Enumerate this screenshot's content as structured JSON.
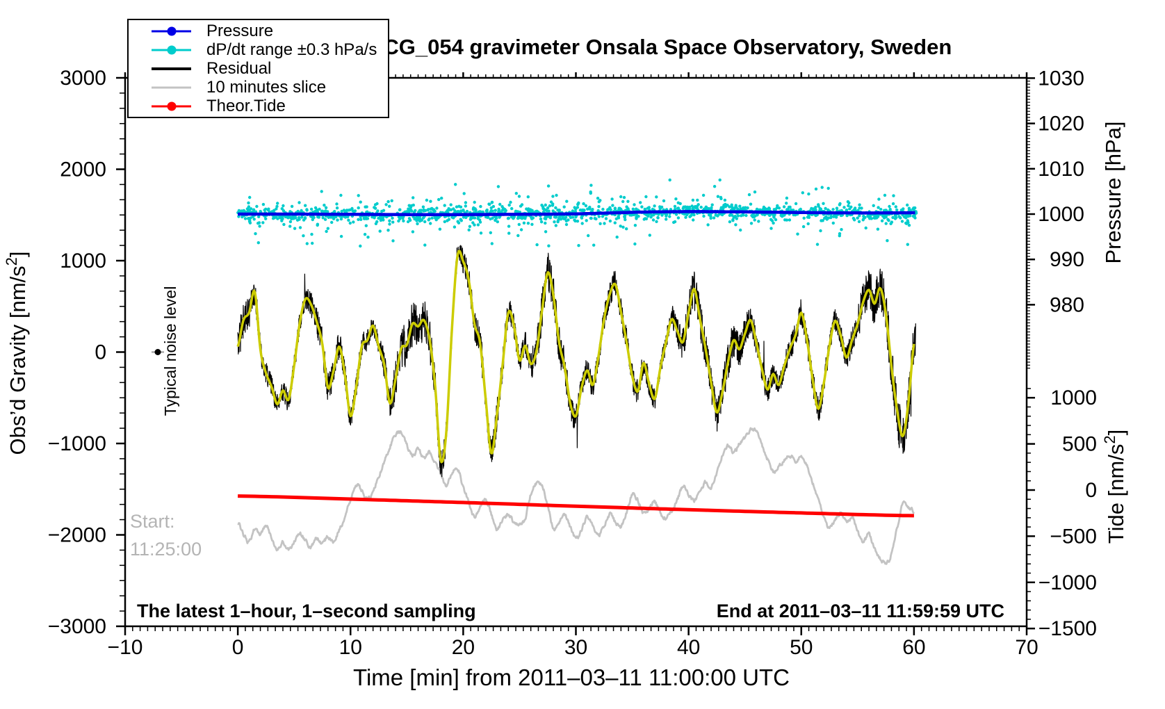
{
  "title": "SCG_054 gravimeter Onsala Space Observatory, Sweden",
  "legend": {
    "items": [
      {
        "label": "Pressure",
        "color": "#0000e6",
        "marker": "line-dot",
        "thickness": 3
      },
      {
        "label": "dP/dt range ±0.3 hPa/s",
        "color": "#00cccc",
        "marker": "line-dot",
        "thickness": 3
      },
      {
        "label": "Residual",
        "color": "#000000",
        "marker": "line",
        "thickness": 4
      },
      {
        "label": "10 minutes slice",
        "color": "#c3c3c3",
        "marker": "line",
        "thickness": 3
      },
      {
        "label": "Theor.Tide",
        "color": "#ff0000",
        "marker": "line-dot",
        "thickness": 3
      }
    ]
  },
  "annotations": {
    "typical_noise_level": "Typical noise level",
    "start_line1": "Start:",
    "start_line2": "11:25:00",
    "start_color": "#b4b4b4",
    "bottom_left": "The latest 1–hour, 1–second sampling",
    "bottom_right": "End at 2011–03–11 11:59:59 UTC"
  },
  "axes": {
    "x": {
      "label": "Time [min] from 2011–03–11 11:00:00 UTC",
      "min": -10,
      "max": 70,
      "major_step": 10,
      "minor_per_major": 15,
      "ticks": [
        [
          -10,
          "−10"
        ],
        [
          0,
          "0"
        ],
        [
          10,
          "10"
        ],
        [
          20,
          "20"
        ],
        [
          30,
          "30"
        ],
        [
          40,
          "40"
        ],
        [
          50,
          "50"
        ],
        [
          60,
          "60"
        ],
        [
          70,
          "70"
        ]
      ]
    },
    "y_left": {
      "label_pre": "Obs’d Gravity [nm/s",
      "label_sup": "2",
      "label_post": "]",
      "min": -3000,
      "max": 3000,
      "major_step": 1000,
      "minor_per_major": 6,
      "ticks": [
        [
          3000,
          "3000"
        ],
        [
          2000,
          "2000"
        ],
        [
          1000,
          "1000"
        ],
        [
          0,
          "0"
        ],
        [
          -1000,
          "−1000"
        ],
        [
          -2000,
          "−2000"
        ],
        [
          -3000,
          "−3000"
        ]
      ]
    },
    "y_right_pressure": {
      "label": "Pressure [hPa]",
      "major_step": 10,
      "minor_step": 0.6667,
      "minor_range": [
        966,
        1030
      ],
      "ticks": [
        [
          1030,
          "1030"
        ],
        [
          1020,
          "1020"
        ],
        [
          1010,
          "1010"
        ],
        [
          1000,
          "1000"
        ],
        [
          990,
          "990"
        ],
        [
          980,
          "980"
        ]
      ]
    },
    "y_right_tide": {
      "label_pre": "Tide [nm/s",
      "label_sup": "2",
      "label_post": "]",
      "major_step": 500,
      "minor_step": 100,
      "minor_range": [
        -1500,
        1100
      ],
      "ticks": [
        [
          1000,
          "1000"
        ],
        [
          500,
          "500"
        ],
        [
          0,
          "0"
        ],
        [
          -500,
          "−500"
        ],
        [
          -1000,
          "−1000"
        ],
        [
          -1500,
          "−1500"
        ]
      ]
    }
  },
  "chart_data": {
    "type": "line",
    "noise_seed": 20110311,
    "series": [
      {
        "name": "pressure",
        "axis": "pressure",
        "color": "#0000e6",
        "width": 4.5,
        "anchors": [
          [
            0,
            1000.0
          ],
          [
            5,
            1000.0
          ],
          [
            10,
            999.95
          ],
          [
            15,
            999.9
          ],
          [
            20,
            999.9
          ],
          [
            25,
            999.95
          ],
          [
            30,
            1000.05
          ],
          [
            33,
            1000.25
          ],
          [
            36,
            1000.45
          ],
          [
            40,
            1000.55
          ],
          [
            44,
            1000.5
          ],
          [
            48,
            1000.4
          ],
          [
            52,
            1000.3
          ],
          [
            56,
            1000.25
          ],
          [
            60,
            1000.3
          ]
        ]
      },
      {
        "name": "theor_tide",
        "axis": "tide",
        "color": "#ff0000",
        "width": 5,
        "anchors": [
          [
            0,
            -65
          ],
          [
            10,
            -98
          ],
          [
            20,
            -135
          ],
          [
            30,
            -175
          ],
          [
            40,
            -213
          ],
          [
            50,
            -248
          ],
          [
            60,
            -278
          ]
        ]
      }
    ],
    "dpdt_scatter": {
      "axis": "pressure",
      "color": "#00cccc",
      "count": 1500,
      "radius": 2.2,
      "t_range": [
        0,
        60.2
      ],
      "sigmas_hpa": [
        0.75,
        2.0,
        4.2
      ],
      "sigma_weights": [
        0.7,
        0.23,
        0.07
      ],
      "clamp_hpa": 7
    },
    "residual_smooth": {
      "axis": "gravity",
      "color": "#cccc00",
      "width": 3.5,
      "t0": 0,
      "dt": 0.5,
      "values": [
        60,
        350,
        430,
        660,
        30,
        -230,
        -380,
        -570,
        -420,
        -520,
        -150,
        320,
        580,
        520,
        330,
        90,
        -390,
        -200,
        60,
        -250,
        -700,
        -390,
        60,
        130,
        290,
        60,
        -140,
        -560,
        -290,
        40,
        80,
        310,
        280,
        350,
        150,
        -360,
        -1180,
        -880,
        250,
        1060,
        990,
        780,
        310,
        100,
        -520,
        -1110,
        -680,
        -140,
        430,
        290,
        -90,
        70,
        -130,
        10,
        460,
        870,
        620,
        110,
        -160,
        -560,
        -700,
        -390,
        -200,
        -360,
        -50,
        360,
        630,
        740,
        440,
        110,
        -260,
        -430,
        -120,
        -350,
        -510,
        -170,
        110,
        360,
        230,
        110,
        430,
        690,
        370,
        40,
        -330,
        -660,
        -440,
        -110,
        130,
        30,
        200,
        350,
        110,
        -180,
        -410,
        -240,
        -360,
        -150,
        40,
        190,
        430,
        140,
        -290,
        -620,
        -340,
        70,
        340,
        180,
        -60,
        130,
        310,
        550,
        680,
        530,
        700,
        420,
        -150,
        -630,
        -920,
        -560,
        90
      ]
    },
    "residual": {
      "axis": "gravity",
      "color": "#000000",
      "width": 1.2,
      "noise_amp_anchors": [
        [
          0,
          210
        ],
        [
          2,
          140
        ],
        [
          4,
          115
        ],
        [
          6,
          125
        ],
        [
          8,
          170
        ],
        [
          10,
          135
        ],
        [
          12,
          110
        ],
        [
          14,
          200
        ],
        [
          15.5,
          245
        ],
        [
          17,
          225
        ],
        [
          18.5,
          155
        ],
        [
          20,
          135
        ],
        [
          21.5,
          175
        ],
        [
          23,
          165
        ],
        [
          25,
          130
        ],
        [
          26.5,
          200
        ],
        [
          28,
          215
        ],
        [
          30,
          140
        ],
        [
          32,
          125
        ],
        [
          34,
          155
        ],
        [
          36,
          130
        ],
        [
          38,
          110
        ],
        [
          40,
          185
        ],
        [
          42,
          205
        ],
        [
          44,
          195
        ],
        [
          46,
          140
        ],
        [
          48,
          120
        ],
        [
          50,
          145
        ],
        [
          52,
          135
        ],
        [
          54,
          125
        ],
        [
          55.5,
          205
        ],
        [
          57,
          235
        ],
        [
          58.5,
          265
        ],
        [
          60,
          230
        ]
      ],
      "spike_prob": 0.005,
      "spike_min": 150,
      "spike_extra": 300,
      "sample_dt": 0.022
    },
    "ten_min_slice": {
      "axis": "tide",
      "color": "#c3c3c3",
      "width": 2.8,
      "t0": 0,
      "dt": 0.5,
      "wiggle": 90,
      "values": [
        -350,
        -480,
        -560,
        -420,
        -480,
        -390,
        -520,
        -640,
        -560,
        -650,
        -560,
        -470,
        -550,
        -620,
        -520,
        -590,
        -500,
        -570,
        -420,
        -310,
        -100,
        40,
        0,
        -90,
        -10,
        150,
        300,
        470,
        600,
        620,
        480,
        380,
        440,
        340,
        400,
        300,
        180,
        60,
        190,
        240,
        30,
        -130,
        -300,
        -170,
        -100,
        -260,
        -430,
        -320,
        -260,
        -350,
        -380,
        -300,
        -40,
        70,
        40,
        -170,
        -410,
        -340,
        -280,
        -410,
        -530,
        -430,
        -300,
        -400,
        -490,
        -380,
        -260,
        -350,
        -400,
        -250,
        -50,
        -110,
        -260,
        -190,
        -130,
        -250,
        -300,
        -230,
        -100,
        40,
        -50,
        -110,
        -20,
        80,
        20,
        190,
        380,
        490,
        400,
        500,
        570,
        650,
        630,
        490,
        340,
        190,
        250,
        320,
        380,
        320,
        380,
        260,
        80,
        -110,
        -300,
        -410,
        -320,
        -260,
        -350,
        -300,
        -450,
        -560,
        -480,
        -640,
        -740,
        -800,
        -690,
        -420,
        -130,
        -180,
        -230
      ]
    },
    "noise_marker": {
      "t": -7.1,
      "value": 0,
      "color": "#000000",
      "bar_color": "#aaaaaa"
    }
  }
}
